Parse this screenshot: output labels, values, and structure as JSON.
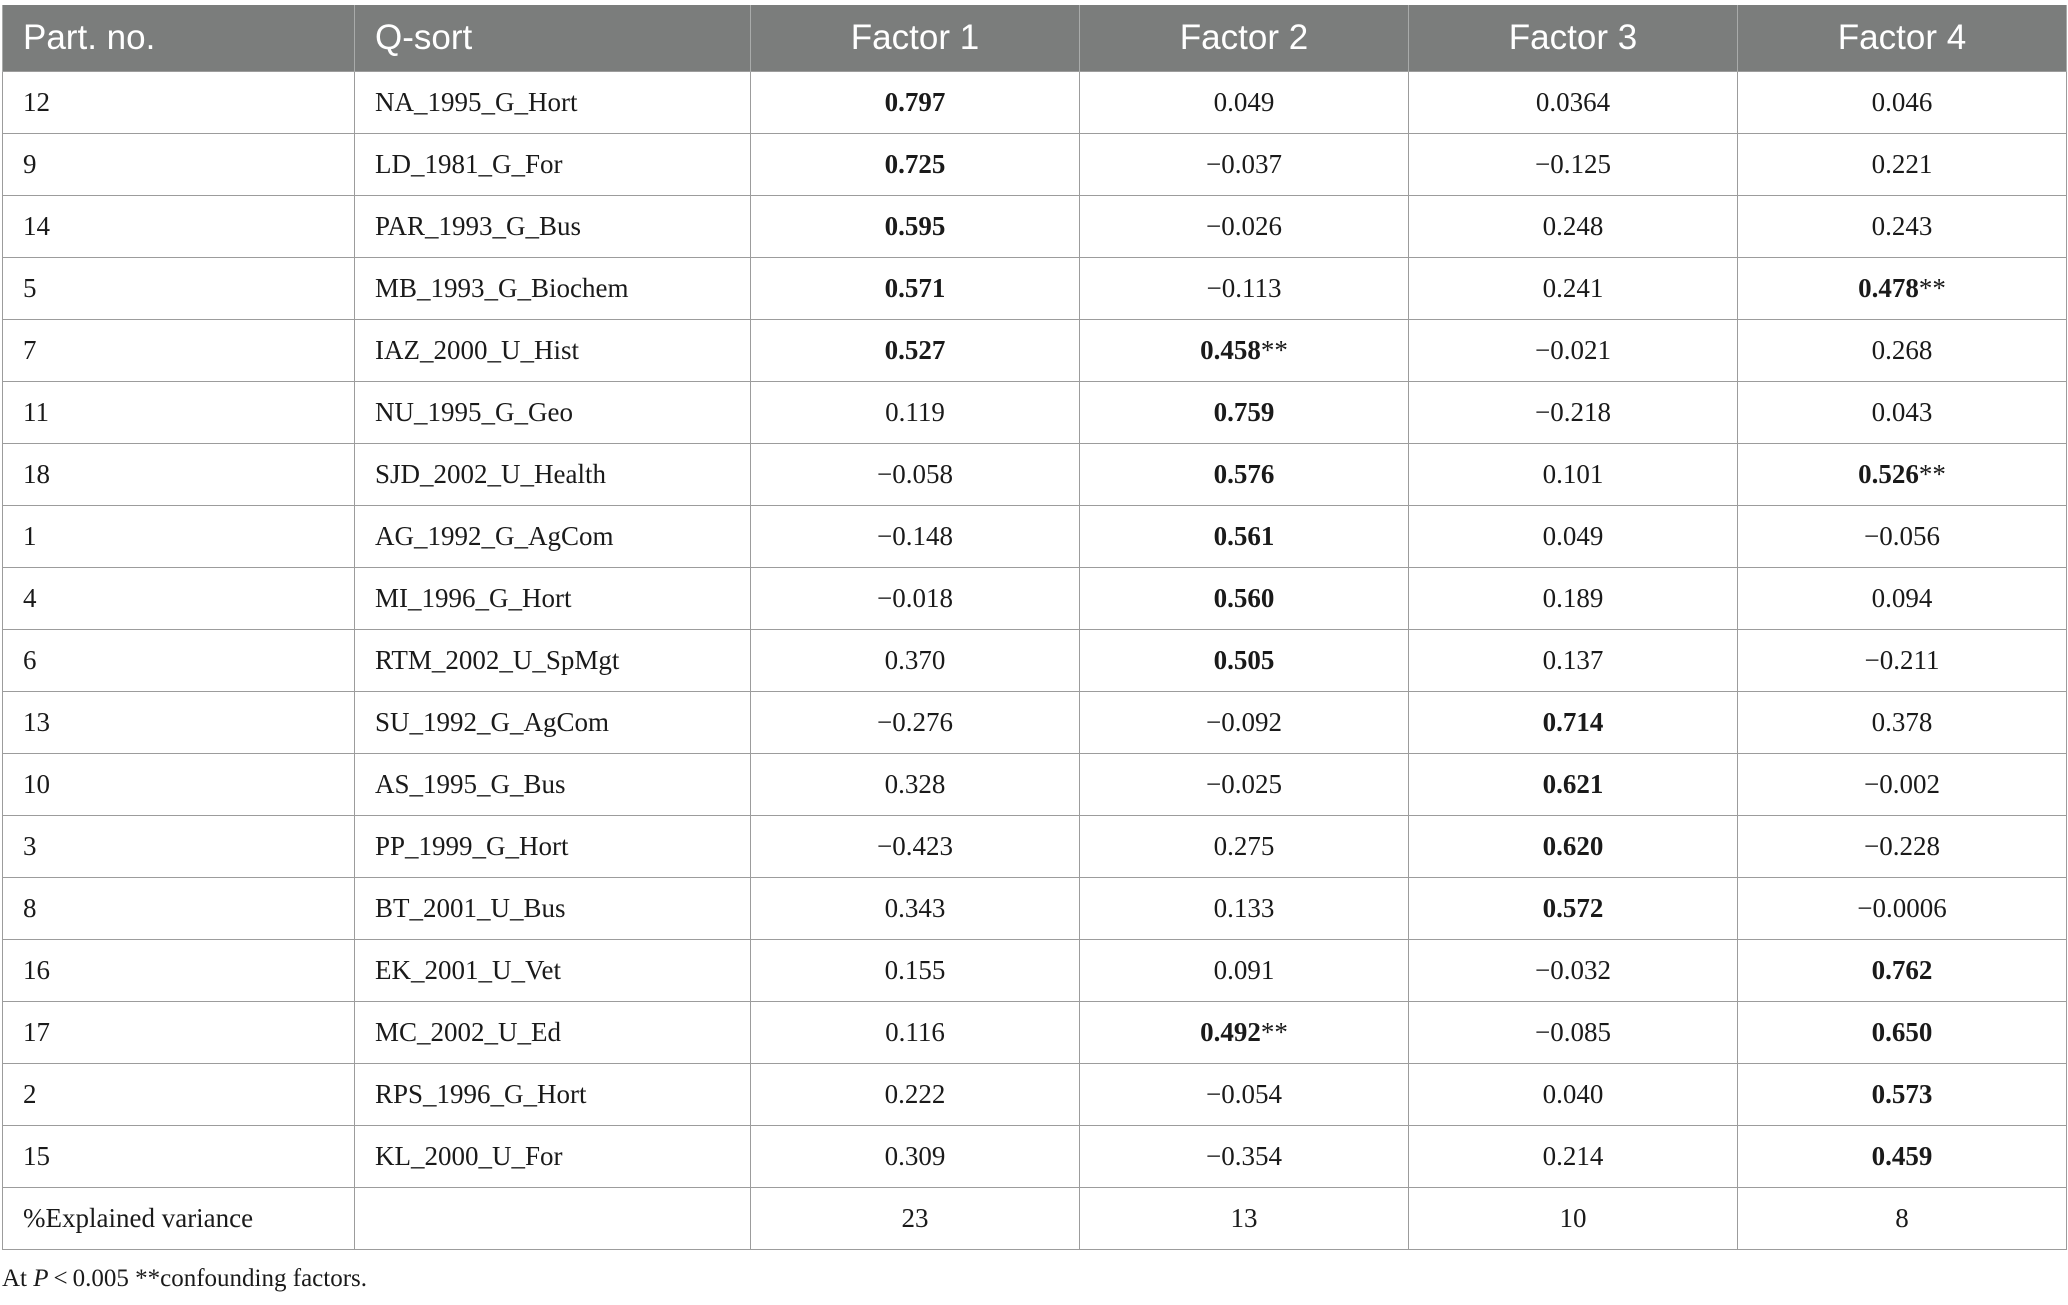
{
  "table": {
    "headers": [
      "Part. no.",
      "Q-sort",
      "Factor 1",
      "Factor 2",
      "Factor 3",
      "Factor 4"
    ],
    "rows": [
      {
        "part": "12",
        "qsort": "NA_1995_G_Hort",
        "f": [
          {
            "v": "0.797",
            "b": true,
            "s": ""
          },
          {
            "v": "0.049",
            "b": false,
            "s": ""
          },
          {
            "v": "0.0364",
            "b": false,
            "s": ""
          },
          {
            "v": "0.046",
            "b": false,
            "s": ""
          }
        ]
      },
      {
        "part": "9",
        "qsort": "LD_1981_G_For",
        "f": [
          {
            "v": "0.725",
            "b": true,
            "s": ""
          },
          {
            "v": "−0.037",
            "b": false,
            "s": ""
          },
          {
            "v": "−0.125",
            "b": false,
            "s": ""
          },
          {
            "v": "0.221",
            "b": false,
            "s": ""
          }
        ]
      },
      {
        "part": "14",
        "qsort": "PAR_1993_G_Bus",
        "f": [
          {
            "v": "0.595",
            "b": true,
            "s": ""
          },
          {
            "v": "−0.026",
            "b": false,
            "s": ""
          },
          {
            "v": "0.248",
            "b": false,
            "s": ""
          },
          {
            "v": "0.243",
            "b": false,
            "s": ""
          }
        ]
      },
      {
        "part": "5",
        "qsort": "MB_1993_G_Biochem",
        "f": [
          {
            "v": "0.571",
            "b": true,
            "s": ""
          },
          {
            "v": "−0.113",
            "b": false,
            "s": ""
          },
          {
            "v": "0.241",
            "b": false,
            "s": ""
          },
          {
            "v": "0.478",
            "b": true,
            "s": "**"
          }
        ]
      },
      {
        "part": "7",
        "qsort": "IAZ_2000_U_Hist",
        "f": [
          {
            "v": "0.527",
            "b": true,
            "s": ""
          },
          {
            "v": "0.458",
            "b": true,
            "s": "**"
          },
          {
            "v": "−0.021",
            "b": false,
            "s": ""
          },
          {
            "v": "0.268",
            "b": false,
            "s": ""
          }
        ]
      },
      {
        "part": "11",
        "qsort": "NU_1995_G_Geo",
        "f": [
          {
            "v": "0.119",
            "b": false,
            "s": ""
          },
          {
            "v": "0.759",
            "b": true,
            "s": ""
          },
          {
            "v": "−0.218",
            "b": false,
            "s": ""
          },
          {
            "v": "0.043",
            "b": false,
            "s": ""
          }
        ]
      },
      {
        "part": "18",
        "qsort": "SJD_2002_U_Health",
        "f": [
          {
            "v": "−0.058",
            "b": false,
            "s": ""
          },
          {
            "v": "0.576",
            "b": true,
            "s": ""
          },
          {
            "v": "0.101",
            "b": false,
            "s": ""
          },
          {
            "v": "0.526",
            "b": true,
            "s": "**"
          }
        ]
      },
      {
        "part": "1",
        "qsort": "AG_1992_G_AgCom",
        "f": [
          {
            "v": "−0.148",
            "b": false,
            "s": ""
          },
          {
            "v": "0.561",
            "b": true,
            "s": ""
          },
          {
            "v": "0.049",
            "b": false,
            "s": ""
          },
          {
            "v": "−0.056",
            "b": false,
            "s": ""
          }
        ]
      },
      {
        "part": "4",
        "qsort": "MI_1996_G_Hort",
        "f": [
          {
            "v": "−0.018",
            "b": false,
            "s": ""
          },
          {
            "v": "0.560",
            "b": true,
            "s": ""
          },
          {
            "v": "0.189",
            "b": false,
            "s": ""
          },
          {
            "v": "0.094",
            "b": false,
            "s": ""
          }
        ]
      },
      {
        "part": "6",
        "qsort": "RTM_2002_U_SpMgt",
        "f": [
          {
            "v": "0.370",
            "b": false,
            "s": ""
          },
          {
            "v": "0.505",
            "b": true,
            "s": ""
          },
          {
            "v": "0.137",
            "b": false,
            "s": ""
          },
          {
            "v": "−0.211",
            "b": false,
            "s": ""
          }
        ]
      },
      {
        "part": "13",
        "qsort": "SU_1992_G_AgCom",
        "f": [
          {
            "v": "−0.276",
            "b": false,
            "s": ""
          },
          {
            "v": "−0.092",
            "b": false,
            "s": ""
          },
          {
            "v": "0.714",
            "b": true,
            "s": ""
          },
          {
            "v": "0.378",
            "b": false,
            "s": ""
          }
        ]
      },
      {
        "part": "10",
        "qsort": "AS_1995_G_Bus",
        "f": [
          {
            "v": "0.328",
            "b": false,
            "s": ""
          },
          {
            "v": "−0.025",
            "b": false,
            "s": ""
          },
          {
            "v": "0.621",
            "b": true,
            "s": ""
          },
          {
            "v": "−0.002",
            "b": false,
            "s": ""
          }
        ]
      },
      {
        "part": "3",
        "qsort": "PP_1999_G_Hort",
        "f": [
          {
            "v": "−0.423",
            "b": false,
            "s": ""
          },
          {
            "v": "0.275",
            "b": false,
            "s": ""
          },
          {
            "v": "0.620",
            "b": true,
            "s": ""
          },
          {
            "v": "−0.228",
            "b": false,
            "s": ""
          }
        ]
      },
      {
        "part": "8",
        "qsort": "BT_2001_U_Bus",
        "f": [
          {
            "v": "0.343",
            "b": false,
            "s": ""
          },
          {
            "v": "0.133",
            "b": false,
            "s": ""
          },
          {
            "v": "0.572",
            "b": true,
            "s": ""
          },
          {
            "v": "−0.0006",
            "b": false,
            "s": ""
          }
        ]
      },
      {
        "part": "16",
        "qsort": "EK_2001_U_Vet",
        "f": [
          {
            "v": "0.155",
            "b": false,
            "s": ""
          },
          {
            "v": "0.091",
            "b": false,
            "s": ""
          },
          {
            "v": "−0.032",
            "b": false,
            "s": ""
          },
          {
            "v": "0.762",
            "b": true,
            "s": ""
          }
        ]
      },
      {
        "part": "17",
        "qsort": "MC_2002_U_Ed",
        "f": [
          {
            "v": "0.116",
            "b": false,
            "s": ""
          },
          {
            "v": "0.492",
            "b": true,
            "s": "**"
          },
          {
            "v": "−0.085",
            "b": false,
            "s": ""
          },
          {
            "v": "0.650",
            "b": true,
            "s": ""
          }
        ]
      },
      {
        "part": "2",
        "qsort": "RPS_1996_G_Hort",
        "f": [
          {
            "v": "0.222",
            "b": false,
            "s": ""
          },
          {
            "v": "−0.054",
            "b": false,
            "s": ""
          },
          {
            "v": "0.040",
            "b": false,
            "s": ""
          },
          {
            "v": "0.573",
            "b": true,
            "s": ""
          }
        ]
      },
      {
        "part": "15",
        "qsort": "KL_2000_U_For",
        "f": [
          {
            "v": "0.309",
            "b": false,
            "s": ""
          },
          {
            "v": "−0.354",
            "b": false,
            "s": ""
          },
          {
            "v": "0.214",
            "b": false,
            "s": ""
          },
          {
            "v": "0.459",
            "b": true,
            "s": ""
          }
        ]
      }
    ],
    "variance_row": {
      "label": "%Explained variance",
      "qsort": "",
      "values": [
        "23",
        "13",
        "10",
        "8"
      ]
    }
  },
  "footnote": {
    "prefix": "At ",
    "p_symbol": "P",
    "rest": " < 0.005 **confounding factors."
  }
}
